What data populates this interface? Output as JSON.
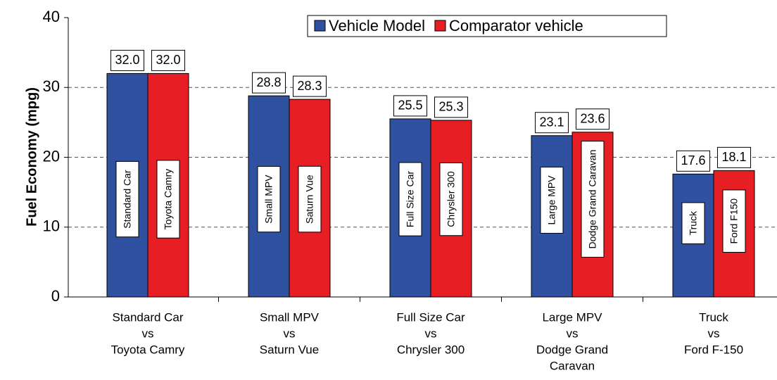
{
  "chart_data": {
    "type": "bar",
    "y_label": "Fuel Economy (mpg)",
    "categories": [
      [
        "Standard Car",
        "vs",
        "Toyota Camry"
      ],
      [
        "Small MPV",
        "vs",
        "Saturn Vue"
      ],
      [
        "Full Size Car",
        "vs",
        "Chrysler 300"
      ],
      [
        "Large MPV",
        "vs",
        "Dodge Grand",
        "Caravan"
      ],
      [
        "Truck",
        "vs",
        "Ford F-150"
      ]
    ],
    "series": [
      {
        "name": "Vehicle Model",
        "color": "#3050a0",
        "values": [
          32.0,
          28.8,
          25.5,
          23.1,
          17.6
        ],
        "value_labels": [
          "32.0",
          "28.8",
          "25.5",
          "23.1",
          "17.6"
        ],
        "bar_labels": [
          "Standard Car",
          "Small MPV",
          "Full Size Car",
          "Large MPV",
          "Truck"
        ]
      },
      {
        "name": "Comparator vehicle",
        "color": "#e81e25",
        "values": [
          32.0,
          28.3,
          25.3,
          23.6,
          18.1
        ],
        "value_labels": [
          "32.0",
          "28.3",
          "25.3",
          "23.6",
          "18.1"
        ],
        "bar_labels": [
          "Toyota Camry",
          "Saturn Vue",
          "Chrysler 300",
          "Dodge Grand Caravan",
          "Ford F150"
        ]
      }
    ],
    "ylim": [
      0,
      40
    ],
    "yticks": [
      0,
      10,
      20,
      30,
      40
    ],
    "grid": true,
    "legend": "top"
  }
}
